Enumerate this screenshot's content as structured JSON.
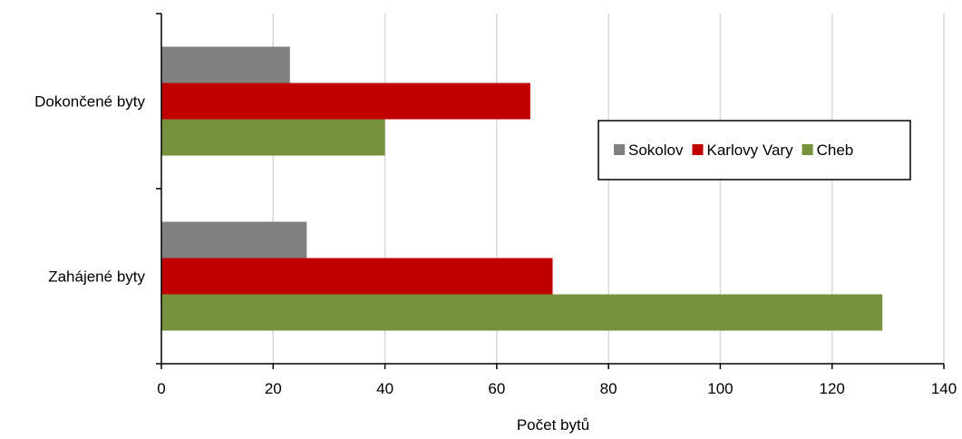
{
  "chart_data": {
    "type": "bar",
    "orientation": "horizontal",
    "categories": [
      "Dokončené byty",
      "Zahájené byty"
    ],
    "series": [
      {
        "name": "Sokolov",
        "color": "#808080",
        "values": [
          23,
          26
        ]
      },
      {
        "name": "Karlovy Vary",
        "color": "#c00000",
        "values": [
          66,
          70
        ]
      },
      {
        "name": "Cheb",
        "color": "#76923c",
        "values": [
          40,
          129
        ]
      }
    ],
    "xlabel": "Počet bytů",
    "ylabel": "",
    "xlim": [
      0,
      140
    ],
    "xticks": [
      "0",
      "20",
      "40",
      "60",
      "80",
      "100",
      "120",
      "140"
    ],
    "grid": true,
    "legend_position": "right"
  }
}
